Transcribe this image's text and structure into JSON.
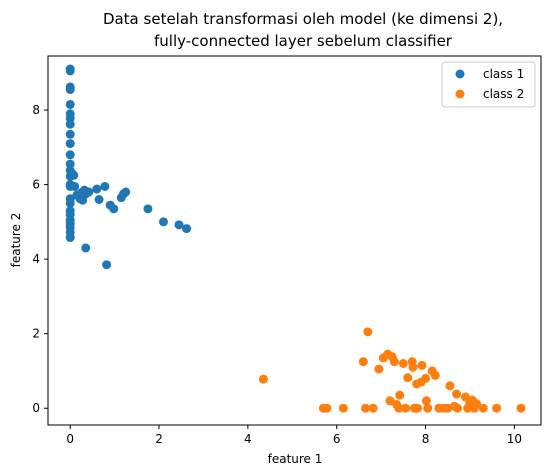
{
  "chart_data": {
    "type": "scatter",
    "title_lines": [
      "Data setelah transformasi oleh model (ke dimensi 2),",
      "fully-connected layer sebelum classifier"
    ],
    "xlabel": "feature 1",
    "ylabel": "feature 2",
    "xlim": [
      -0.5,
      10.6
    ],
    "ylim": [
      -0.45,
      9.45
    ],
    "xticks": [
      0,
      2,
      4,
      6,
      8,
      10
    ],
    "yticks": [
      0,
      2,
      4,
      6,
      8
    ],
    "grid": false,
    "legend_position": "top-right",
    "series": [
      {
        "name": "class 1",
        "color": "#1f77b4",
        "points": [
          [
            0,
            9.1
          ],
          [
            0,
            9.05
          ],
          [
            0,
            8.62
          ],
          [
            0,
            8.55
          ],
          [
            0,
            8.15
          ],
          [
            0,
            7.9
          ],
          [
            0,
            7.78
          ],
          [
            0,
            7.62
          ],
          [
            0,
            7.35
          ],
          [
            0,
            7.1
          ],
          [
            0,
            6.8
          ],
          [
            0,
            6.55
          ],
          [
            0,
            6.38
          ],
          [
            0,
            6.22
          ],
          [
            0,
            6.0
          ],
          [
            0,
            5.95
          ],
          [
            0,
            5.62
          ],
          [
            0,
            5.5
          ],
          [
            0,
            5.3
          ],
          [
            0,
            5.2
          ],
          [
            0,
            5.05
          ],
          [
            0,
            4.95
          ],
          [
            0,
            4.85
          ],
          [
            0,
            4.72
          ],
          [
            0,
            4.58
          ],
          [
            0.04,
            6.3
          ],
          [
            0.08,
            6.25
          ],
          [
            0.1,
            5.95
          ],
          [
            0.15,
            5.72
          ],
          [
            0.22,
            5.62
          ],
          [
            0.25,
            5.78
          ],
          [
            0.28,
            5.58
          ],
          [
            0.32,
            5.85
          ],
          [
            0.35,
            5.75
          ],
          [
            0.42,
            5.8
          ],
          [
            0.6,
            5.88
          ],
          [
            0.65,
            5.6
          ],
          [
            0.78,
            5.95
          ],
          [
            0.9,
            5.45
          ],
          [
            0.98,
            5.35
          ],
          [
            1.15,
            5.65
          ],
          [
            1.2,
            5.75
          ],
          [
            1.25,
            5.8
          ],
          [
            1.75,
            5.35
          ],
          [
            2.1,
            5.0
          ],
          [
            2.45,
            4.92
          ],
          [
            2.62,
            4.82
          ],
          [
            0.35,
            4.3
          ],
          [
            0.82,
            3.85
          ]
        ]
      },
      {
        "name": "class 2",
        "color": "#ff7f0e",
        "points": [
          [
            4.35,
            0.78
          ],
          [
            5.7,
            0
          ],
          [
            5.78,
            0
          ],
          [
            6.15,
            0
          ],
          [
            6.6,
            1.25
          ],
          [
            6.7,
            2.05
          ],
          [
            6.65,
            0
          ],
          [
            6.82,
            0
          ],
          [
            6.95,
            1.05
          ],
          [
            7.05,
            1.35
          ],
          [
            7.15,
            1.45
          ],
          [
            7.2,
            0.2
          ],
          [
            7.25,
            1.38
          ],
          [
            7.3,
            1.25
          ],
          [
            7.35,
            0.1
          ],
          [
            7.4,
            0
          ],
          [
            7.42,
            0.35
          ],
          [
            7.5,
            1.2
          ],
          [
            7.55,
            0
          ],
          [
            7.6,
            0.82
          ],
          [
            7.7,
            1.25
          ],
          [
            7.72,
            1.1
          ],
          [
            7.75,
            0
          ],
          [
            7.8,
            0.65
          ],
          [
            7.82,
            0
          ],
          [
            7.9,
            0.7
          ],
          [
            7.92,
            1.15
          ],
          [
            8.0,
            0.8
          ],
          [
            8.02,
            0.2
          ],
          [
            8.05,
            0
          ],
          [
            8.15,
            1.0
          ],
          [
            8.22,
            0.88
          ],
          [
            8.3,
            0
          ],
          [
            8.4,
            0
          ],
          [
            8.5,
            0
          ],
          [
            8.55,
            0.6
          ],
          [
            8.65,
            0.05
          ],
          [
            8.7,
            0.38
          ],
          [
            8.72,
            0
          ],
          [
            8.9,
            0.3
          ],
          [
            8.95,
            0
          ],
          [
            9.0,
            0.15
          ],
          [
            9.05,
            0.22
          ],
          [
            9.1,
            0
          ],
          [
            9.15,
            0.12
          ],
          [
            9.3,
            0
          ],
          [
            9.6,
            0
          ],
          [
            10.15,
            0
          ]
        ]
      }
    ]
  }
}
